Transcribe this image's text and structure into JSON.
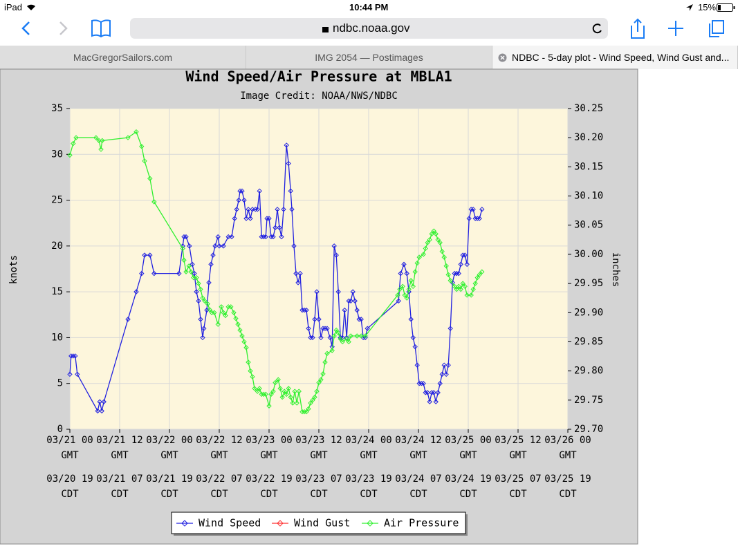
{
  "status_bar": {
    "device": "iPad",
    "time": "10:44 PM",
    "battery": "15%"
  },
  "browser": {
    "url": "ndbc.noaa.gov",
    "tabs": [
      "MacGregorSailors.com",
      "IMG 2054 — Postimages",
      "NDBC - 5-day plot - Wind Speed, Wind Gust and..."
    ]
  },
  "chart_data": {
    "type": "line",
    "title": "Wind Speed/Air Pressure at MBLA1",
    "subtitle": "Image Credit: NOAA/NWS/NDBC",
    "y_label": "knots",
    "y2_label": "inches",
    "grid": true,
    "xlim": [
      0,
      120
    ],
    "xticks": [
      {
        "value": 0,
        "label": "03/21 00 GMT"
      },
      {
        "value": 12,
        "label": "03/21 12 GMT"
      },
      {
        "value": 24,
        "label": "03/22 00 GMT"
      },
      {
        "value": 36,
        "label": "03/22 12 GMT"
      },
      {
        "value": 48,
        "label": "03/23 00 GMT"
      },
      {
        "value": 60,
        "label": "03/23 12 GMT"
      },
      {
        "value": 72,
        "label": "03/24 00 GMT"
      },
      {
        "value": 84,
        "label": "03/24 12 GMT"
      },
      {
        "value": 96,
        "label": "03/25 00 GMT"
      },
      {
        "value": 108,
        "label": "03/25 12 GMT"
      },
      {
        "value": 120,
        "label": "03/26 00 GMT"
      }
    ],
    "xticks_local": [
      {
        "value": 0,
        "label": "03/20 19 CDT"
      },
      {
        "value": 12,
        "label": "03/21 07 CDT"
      },
      {
        "value": 24,
        "label": "03/21 19 CDT"
      },
      {
        "value": 36,
        "label": "03/22 07 CDT"
      },
      {
        "value": 48,
        "label": "03/22 19 CDT"
      },
      {
        "value": 60,
        "label": "03/23 07 CDT"
      },
      {
        "value": 72,
        "label": "03/23 19 CDT"
      },
      {
        "value": 84,
        "label": "03/24 07 CDT"
      },
      {
        "value": 96,
        "label": "03/24 19 CDT"
      },
      {
        "value": 108,
        "label": "03/25 07 CDT"
      },
      {
        "value": 120,
        "label": "03/25 19 CDT"
      }
    ],
    "ylim": [
      0,
      35
    ],
    "yticks": [
      0,
      5,
      10,
      15,
      20,
      25,
      30,
      35
    ],
    "y2lim": [
      29.7,
      30.25
    ],
    "y2ticks": [
      {
        "value": 29.7,
        "label": "29.70"
      },
      29.75,
      {
        "value": 29.8,
        "label": "29.80"
      },
      29.85,
      {
        "value": 29.9,
        "label": "29.90"
      },
      29.95,
      {
        "value": 30,
        "label": "30.00"
      },
      30.05,
      {
        "value": 30.1,
        "label": "30.10"
      },
      30.15,
      {
        "value": 30.2,
        "label": "30.20"
      },
      30.25
    ],
    "series": [
      {
        "name": "Wind Speed",
        "color": "#2020e0",
        "x": [
          0,
          0.3,
          0.8,
          1.3,
          1.8,
          6.7,
          7.2,
          7.7,
          8.2,
          14,
          16,
          17.3,
          18,
          19.3,
          20.3,
          26.3,
          27.2,
          27.5,
          28,
          28.8,
          29.5,
          30,
          30.5,
          31,
          31.5,
          32,
          32.3,
          33,
          33.5,
          34,
          34.5,
          35,
          35.7,
          36,
          37,
          38.2,
          39,
          39.7,
          40.2,
          40.7,
          41,
          41.5,
          42,
          42.5,
          43,
          43.5,
          44,
          44.7,
          45.2,
          45.7,
          46.2,
          46.7,
          47.2,
          47.5,
          48,
          48.5,
          49,
          49.5,
          50,
          50.5,
          51,
          51.5,
          52.2,
          52.7,
          53.2,
          53.5,
          54,
          54.5,
          55,
          55.5,
          56,
          56.5,
          57,
          57.5,
          58,
          58.5,
          59,
          59.5,
          60,
          60.5,
          61,
          61.5,
          62,
          62.7,
          63.2,
          63.7,
          64.2,
          64.7,
          65.2,
          65.7,
          66.2,
          66.7,
          67.2,
          67.7,
          68.2,
          68.7,
          69.2,
          69.7,
          70.2,
          70.7,
          71.2,
          71.7,
          79.2,
          79.7,
          80.5,
          81.2,
          81.7,
          82.2,
          82.7,
          83.2,
          83.7,
          84.2,
          84.7,
          85.2,
          85.7,
          86.2,
          86.7,
          87.2,
          87.7,
          88.2,
          88.7,
          89.2,
          89.7,
          90.2,
          90.7,
          91.2,
          91.7,
          92.2,
          92.7,
          93.2,
          93.7,
          94.2,
          94.7,
          95.2,
          95.7,
          96.2,
          96.7,
          97.2,
          97.7,
          98.2,
          98.7,
          99.3
        ],
        "values": [
          6,
          8,
          8,
          8,
          6,
          2,
          3,
          2,
          3,
          12,
          15,
          17,
          19,
          19,
          17,
          17,
          20,
          21,
          21,
          20,
          18,
          17,
          15,
          14,
          12,
          10,
          11,
          13,
          16,
          18,
          19,
          20,
          21,
          20,
          20,
          21,
          21,
          23,
          24,
          25,
          26,
          26,
          25,
          23,
          24,
          23,
          24,
          24,
          24,
          26,
          21,
          21,
          21,
          23,
          23,
          21,
          21,
          22,
          24,
          22,
          21,
          24,
          31,
          29,
          26,
          24,
          20,
          17,
          16,
          17,
          13,
          13,
          13,
          11,
          10,
          10,
          12,
          15,
          12,
          10,
          11,
          11,
          11,
          10,
          9,
          20,
          19,
          15,
          10,
          10,
          13,
          10,
          14,
          14,
          15,
          14,
          13,
          12,
          12,
          10,
          10,
          11,
          14,
          17,
          18,
          17,
          15,
          12,
          10,
          9,
          7,
          5,
          5,
          5,
          4,
          4,
          3,
          4,
          4,
          3,
          4,
          5,
          6,
          7,
          6,
          7,
          11,
          16,
          17,
          17,
          17,
          18,
          19,
          19,
          18,
          23,
          24,
          24,
          23,
          23,
          23,
          24
        ]
      },
      {
        "name": "Wind Gust",
        "color": "#ff3030",
        "x": [],
        "values": []
      },
      {
        "name": "Air Pressure",
        "color": "#30f030",
        "axis": "y2",
        "x": [
          0,
          0.8,
          1.5,
          6.3,
          7,
          7.5,
          7.8,
          14,
          16,
          17.3,
          18,
          19.3,
          20.3,
          27.2,
          27.5,
          28,
          28.7,
          29.2,
          29.8,
          30.5,
          31,
          31.5,
          32,
          32.5,
          33.2,
          33.7,
          34.2,
          34.8,
          35.7,
          36.5,
          37,
          37.5,
          38.2,
          38.8,
          39.5,
          40,
          40.5,
          41,
          41.5,
          42,
          42.5,
          43,
          43.5,
          44,
          44.5,
          45.2,
          45.7,
          46.2,
          46.7,
          47.2,
          48,
          48.5,
          49,
          49.5,
          50.2,
          50.7,
          51.2,
          51.7,
          52.2,
          52.7,
          53.2,
          53.7,
          54.2,
          54.7,
          55.2,
          56,
          56.5,
          57,
          57.5,
          58,
          58.5,
          59,
          59.5,
          60,
          60.5,
          61,
          61.5,
          62,
          63.2,
          63.7,
          64.2,
          64.7,
          65.2,
          65.7,
          66.7,
          67.2,
          67.7,
          69.2,
          70.2,
          71.2,
          79,
          79.5,
          80.2,
          80.7,
          81.2,
          81.7,
          82.2,
          82.7,
          83.2,
          83.7,
          84.2,
          85.2,
          85.7,
          86.2,
          86.7,
          87.2,
          87.7,
          88.2,
          88.7,
          89.2,
          89.7,
          90.2,
          90.7,
          91.2,
          91.7,
          92.7,
          93.2,
          93.7,
          94.2,
          94.7,
          95.2,
          95.7,
          96.7,
          97.2,
          97.7,
          98.2,
          98.7,
          99.3
        ],
        "values": [
          30.17,
          30.19,
          30.2,
          30.2,
          30.195,
          30.18,
          30.195,
          30.2,
          30.21,
          30.185,
          30.16,
          30.13,
          30.09,
          30.01,
          29.99,
          29.97,
          29.98,
          29.97,
          29.96,
          29.96,
          29.95,
          29.94,
          29.925,
          29.92,
          29.915,
          29.905,
          29.9,
          29.9,
          29.88,
          29.91,
          29.9,
          29.895,
          29.91,
          29.91,
          29.9,
          29.89,
          29.88,
          29.87,
          29.86,
          29.85,
          29.84,
          29.815,
          29.8,
          29.79,
          29.77,
          29.765,
          29.77,
          29.76,
          29.76,
          29.76,
          29.74,
          29.76,
          29.765,
          29.78,
          29.785,
          29.77,
          29.755,
          29.765,
          29.76,
          29.77,
          29.755,
          29.745,
          29.765,
          29.745,
          29.765,
          29.73,
          29.73,
          29.73,
          29.735,
          29.745,
          29.75,
          29.755,
          29.765,
          29.78,
          29.785,
          29.795,
          29.815,
          29.83,
          29.835,
          29.86,
          29.87,
          29.865,
          29.855,
          29.85,
          29.855,
          29.85,
          29.86,
          29.86,
          29.86,
          29.86,
          29.93,
          29.94,
          29.945,
          29.93,
          29.925,
          29.94,
          29.955,
          29.945,
          29.97,
          29.985,
          29.995,
          30,
          30.01,
          30.02,
          30.025,
          30.035,
          30.04,
          30.035,
          30.025,
          30.02,
          30.005,
          29.995,
          29.98,
          29.965,
          29.955,
          29.945,
          29.94,
          29.945,
          29.94,
          29.95,
          29.945,
          29.93,
          29.93,
          29.94,
          29.95,
          29.96,
          29.965,
          29.97
        ]
      }
    ]
  }
}
